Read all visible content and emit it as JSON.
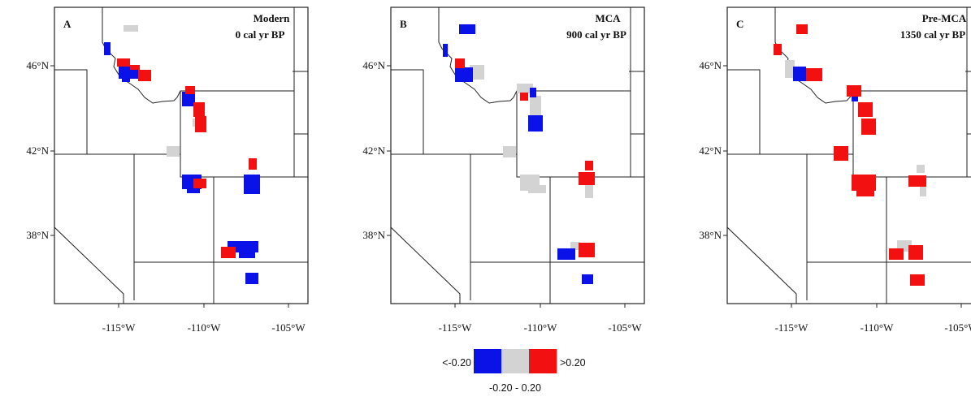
{
  "panels": [
    {
      "letter": "A",
      "title_line1": "Modern",
      "title_line2": "0 cal yr BP",
      "lat_labels": [
        "46°N",
        "42°N",
        "38°N"
      ],
      "lon_labels": [
        "-115°W",
        "-110°W",
        "-105°W"
      ]
    },
    {
      "letter": "B",
      "title_line1": "MCA",
      "title_line2": "900 cal yr BP",
      "lat_labels": [
        "46°N",
        "42°N",
        "38°N"
      ],
      "lon_labels": [
        "-115°W",
        "-110°W",
        "-105°W"
      ]
    },
    {
      "letter": "C",
      "title_line1": "Pre-MCA",
      "title_line2": "1350 cal yr BP",
      "lat_labels": [
        "46°N",
        "42°N",
        "38°N"
      ],
      "lon_labels": [
        "-115°W",
        "-110°W",
        "-105°W"
      ]
    }
  ],
  "legend": {
    "low_label": "<-0.20",
    "high_label": ">0.20",
    "mid_label": "-0.20 - 0.20",
    "colors": {
      "low": "#0a12e8",
      "mid": "#d3d3d3",
      "high": "#f21010"
    }
  }
}
